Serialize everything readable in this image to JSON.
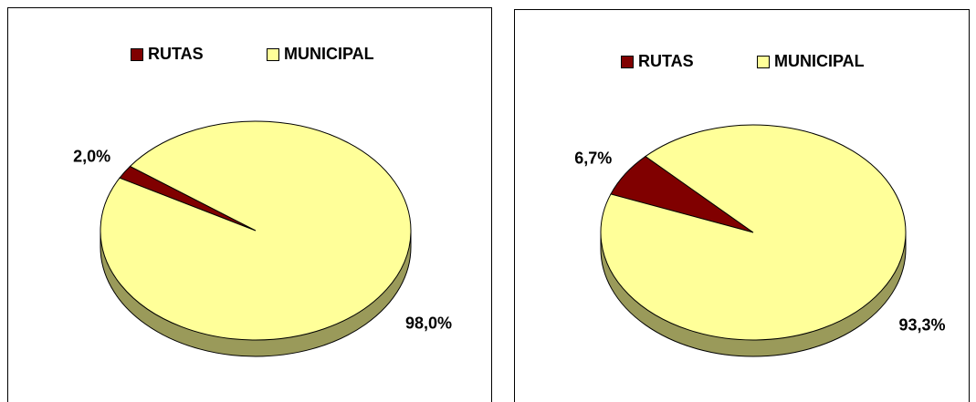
{
  "chart_data": [
    {
      "type": "pie",
      "categories": [
        "RUTAS",
        "MUNICIPAL"
      ],
      "values": [
        2.0,
        98.0
      ],
      "value_labels": [
        "2,0%",
        "98,0%"
      ],
      "colors": [
        "#800000",
        "#ffff99"
      ],
      "side_color": "#9a9a5a",
      "legend": "top"
    },
    {
      "type": "pie",
      "categories": [
        "RUTAS",
        "MUNICIPAL"
      ],
      "values": [
        6.7,
        93.3
      ],
      "value_labels": [
        "6,7%",
        "93,3%"
      ],
      "colors": [
        "#800000",
        "#ffff99"
      ],
      "side_color": "#9a9a5a",
      "legend": "top"
    }
  ]
}
